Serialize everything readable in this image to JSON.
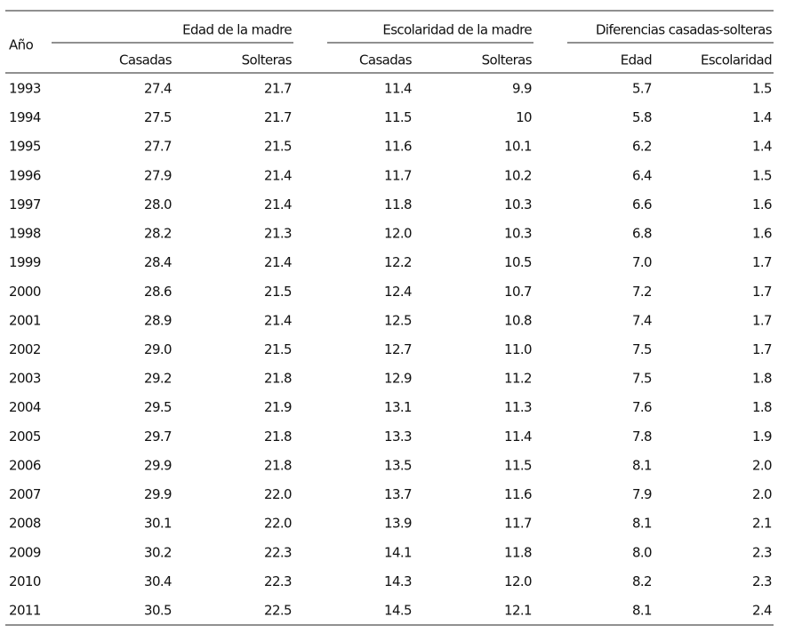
{
  "table": {
    "year_label": "Año",
    "groups": [
      "Edad de la madre",
      "Escolaridad de la madre",
      "Diferencias casadas-solteras"
    ],
    "columns": [
      "Casadas",
      "Solteras",
      "Casadas",
      "Solteras",
      "Edad",
      "Escolaridad"
    ],
    "rows": [
      [
        "1993",
        "27.4",
        "21.7",
        "11.4",
        "9.9",
        "5.7",
        "1.5"
      ],
      [
        "1994",
        "27.5",
        "21.7",
        "11.5",
        "10",
        "5.8",
        "1.4"
      ],
      [
        "1995",
        "27.7",
        "21.5",
        "11.6",
        "10.1",
        "6.2",
        "1.4"
      ],
      [
        "1996",
        "27.9",
        "21.4",
        "11.7",
        "10.2",
        "6.4",
        "1.5"
      ],
      [
        "1997",
        "28.0",
        "21.4",
        "11.8",
        "10.3",
        "6.6",
        "1.6"
      ],
      [
        "1998",
        "28.2",
        "21.3",
        "12.0",
        "10.3",
        "6.8",
        "1.6"
      ],
      [
        "1999",
        "28.4",
        "21.4",
        "12.2",
        "10.5",
        "7.0",
        "1.7"
      ],
      [
        "2000",
        "28.6",
        "21.5",
        "12.4",
        "10.7",
        "7.2",
        "1.7"
      ],
      [
        "2001",
        "28.9",
        "21.4",
        "12.5",
        "10.8",
        "7.4",
        "1.7"
      ],
      [
        "2002",
        "29.0",
        "21.5",
        "12.7",
        "11.0",
        "7.5",
        "1.7"
      ],
      [
        "2003",
        "29.2",
        "21.8",
        "12.9",
        "11.2",
        "7.5",
        "1.8"
      ],
      [
        "2004",
        "29.5",
        "21.9",
        "13.1",
        "11.3",
        "7.6",
        "1.8"
      ],
      [
        "2005",
        "29.7",
        "21.8",
        "13.3",
        "11.4",
        "7.8",
        "1.9"
      ],
      [
        "2006",
        "29.9",
        "21.8",
        "13.5",
        "11.5",
        "8.1",
        "2.0"
      ],
      [
        "2007",
        "29.9",
        "22.0",
        "13.7",
        "11.6",
        "7.9",
        "2.0"
      ],
      [
        "2008",
        "30.1",
        "22.0",
        "13.9",
        "11.7",
        "8.1",
        "2.1"
      ],
      [
        "2009",
        "30.2",
        "22.3",
        "14.1",
        "11.8",
        "8.0",
        "2.3"
      ],
      [
        "2010",
        "30.4",
        "22.3",
        "14.3",
        "12.0",
        "8.2",
        "2.3"
      ],
      [
        "2011",
        "30.5",
        "22.5",
        "14.5",
        "12.1",
        "8.1",
        "2.4"
      ]
    ]
  }
}
